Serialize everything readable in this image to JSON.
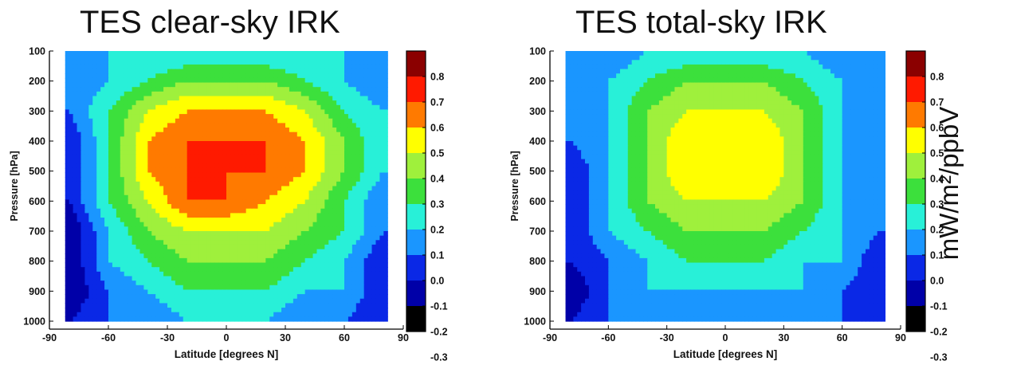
{
  "figure": {
    "units_label": "mW/m²/ppbV"
  },
  "colorbar": {
    "levels": [
      0.8,
      0.7,
      0.6,
      0.5,
      0.4,
      0.3,
      0.2,
      0.1,
      0.0,
      -0.1,
      -0.2,
      -0.3
    ],
    "tick_labels": [
      "0.8",
      "0.7",
      "0.6",
      "0.5",
      "0.4",
      "0.3",
      "0.2",
      "0.1",
      "0.0",
      "-0.1",
      "-0.2",
      "-0.3"
    ],
    "colors": [
      "#8b0000",
      "#ff1a00",
      "#ff7a00",
      "#ffff00",
      "#9ff03c",
      "#3ce03c",
      "#28f0d8",
      "#1a96ff",
      "#0a28e6",
      "#0000a8",
      "#000000"
    ]
  },
  "chart_data": [
    {
      "type": "heatmap",
      "title": "TES clear-sky IRK",
      "xlabel": "Latitude [degrees N]",
      "ylabel": "Pressure [hPa]",
      "xlim": [
        -90,
        90
      ],
      "ylim": [
        1000,
        100
      ],
      "x_ticks": [
        "-90",
        "-60",
        "-30",
        "0",
        "30",
        "60",
        "90"
      ],
      "y_ticks": [
        "100",
        "200",
        "300",
        "400",
        "500",
        "600",
        "700",
        "800",
        "900",
        "1000"
      ],
      "data_lat_range": [
        -82,
        82
      ],
      "colorbar_range": [
        -0.3,
        0.8
      ],
      "latitude": [
        -80,
        -60,
        -40,
        -20,
        0,
        20,
        40,
        60,
        80
      ],
      "pressure": [
        100,
        200,
        300,
        400,
        500,
        600,
        700,
        800,
        900,
        1000
      ],
      "values": [
        [
          0.0,
          0.1,
          0.1,
          0.1,
          0.1,
          0.1,
          0.1,
          0.1,
          0.0
        ],
        [
          0.0,
          0.1,
          0.2,
          0.3,
          0.3,
          0.3,
          0.2,
          0.1,
          0.0
        ],
        [
          0.0,
          0.2,
          0.4,
          0.5,
          0.5,
          0.5,
          0.4,
          0.2,
          0.1
        ],
        [
          -0.1,
          0.2,
          0.5,
          0.6,
          0.6,
          0.6,
          0.5,
          0.3,
          0.1
        ],
        [
          -0.1,
          0.2,
          0.5,
          0.6,
          0.6,
          0.6,
          0.5,
          0.3,
          0.1
        ],
        [
          -0.1,
          0.2,
          0.4,
          0.6,
          0.6,
          0.5,
          0.4,
          0.2,
          0.0
        ],
        [
          -0.2,
          0.1,
          0.3,
          0.4,
          0.4,
          0.4,
          0.3,
          0.2,
          0.0
        ],
        [
          -0.2,
          0.1,
          0.2,
          0.3,
          0.3,
          0.3,
          0.2,
          0.1,
          -0.1
        ],
        [
          -0.2,
          0.0,
          0.1,
          0.2,
          0.2,
          0.2,
          0.1,
          0.1,
          -0.1
        ],
        [
          -0.1,
          0.0,
          0.0,
          0.1,
          0.1,
          0.1,
          0.0,
          0.0,
          -0.1
        ]
      ]
    },
    {
      "type": "heatmap",
      "title": "TES total-sky IRK",
      "xlabel": "Latitude [degrees N]",
      "ylabel": "Pressure [hPa]",
      "xlim": [
        -90,
        90
      ],
      "ylim": [
        1000,
        100
      ],
      "x_ticks": [
        "-90",
        "-60",
        "-30",
        "0",
        "30",
        "60",
        "90"
      ],
      "y_ticks": [
        "100",
        "200",
        "300",
        "400",
        "500",
        "600",
        "700",
        "800",
        "900",
        "1000"
      ],
      "data_lat_range": [
        -82,
        82
      ],
      "colorbar_range": [
        -0.3,
        0.8
      ],
      "latitude": [
        -80,
        -60,
        -40,
        -20,
        0,
        20,
        40,
        60,
        80
      ],
      "pressure": [
        100,
        200,
        300,
        400,
        500,
        600,
        700,
        800,
        900,
        1000
      ],
      "values": [
        [
          0.0,
          0.0,
          0.1,
          0.1,
          0.1,
          0.1,
          0.1,
          0.0,
          0.0
        ],
        [
          0.0,
          0.1,
          0.2,
          0.3,
          0.3,
          0.3,
          0.2,
          0.1,
          0.0
        ],
        [
          0.0,
          0.1,
          0.3,
          0.4,
          0.4,
          0.4,
          0.3,
          0.1,
          0.0
        ],
        [
          0.0,
          0.1,
          0.3,
          0.5,
          0.4,
          0.5,
          0.3,
          0.1,
          0.0
        ],
        [
          -0.1,
          0.1,
          0.3,
          0.5,
          0.4,
          0.5,
          0.3,
          0.1,
          0.0
        ],
        [
          -0.1,
          0.1,
          0.3,
          0.4,
          0.4,
          0.4,
          0.3,
          0.1,
          0.0
        ],
        [
          -0.1,
          0.1,
          0.2,
          0.3,
          0.3,
          0.3,
          0.2,
          0.1,
          0.0
        ],
        [
          -0.1,
          0.0,
          0.1,
          0.2,
          0.2,
          0.2,
          0.1,
          0.1,
          -0.1
        ],
        [
          -0.2,
          0.0,
          0.1,
          0.1,
          0.1,
          0.1,
          0.1,
          0.0,
          -0.1
        ],
        [
          -0.1,
          0.0,
          0.0,
          0.0,
          0.0,
          0.0,
          0.0,
          0.0,
          -0.1
        ]
      ]
    }
  ]
}
